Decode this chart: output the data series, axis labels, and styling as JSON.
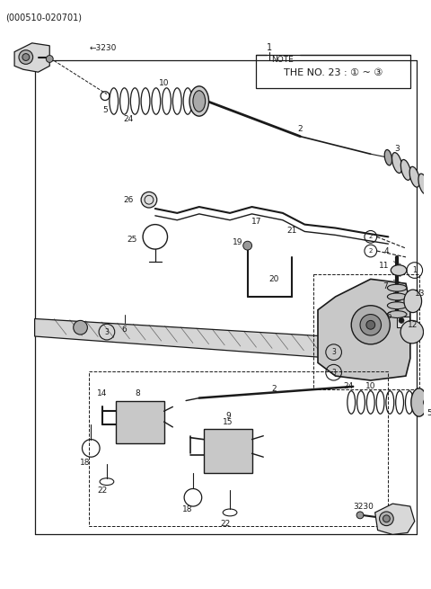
{
  "title": "(000510-020701)",
  "bg_color": "#ffffff",
  "lc": "#1a1a1a",
  "fig_w": 4.8,
  "fig_h": 6.55,
  "dpi": 100,
  "note": [
    "NOTE",
    "THE NO. 23 : ① ~ ③"
  ]
}
